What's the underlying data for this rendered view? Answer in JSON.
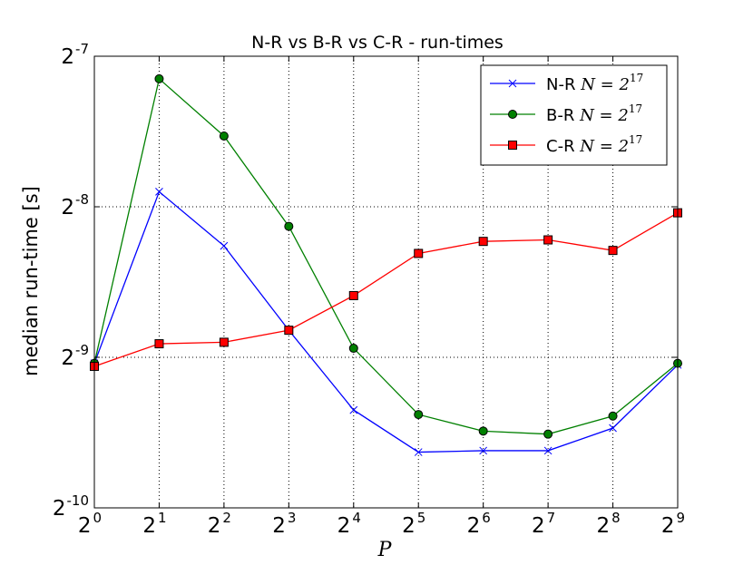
{
  "chart_data": {
    "type": "line",
    "title": "N-R vs B-R vs C-R - run-times",
    "xlabel": "P",
    "ylabel": "median run-time [s]",
    "x_scale": "log2",
    "y_scale": "log2",
    "x_exponents": [
      0,
      1,
      2,
      3,
      4,
      5,
      6,
      7,
      8,
      9
    ],
    "x_tick_base": "2",
    "x_tick_exponents": [
      "0",
      "1",
      "2",
      "3",
      "4",
      "5",
      "6",
      "7",
      "8",
      "9"
    ],
    "y_exponent_range": [
      -10,
      -7
    ],
    "y_tick_base": "2",
    "y_tick_exponents": [
      "-10",
      "-9",
      "-8",
      "-7"
    ],
    "grid": true,
    "legend_position": "top-right",
    "series": [
      {
        "name": "N-R",
        "name_suffix": "N = 2^17",
        "marker": "x",
        "color": "#0000ff",
        "y_log2": [
          -9.04,
          -7.9,
          -8.26,
          -8.82,
          -9.35,
          -9.63,
          -9.62,
          -9.62,
          -9.47,
          -9.05
        ]
      },
      {
        "name": "B-R",
        "name_suffix": "N = 2^17",
        "marker": "circle",
        "color": "#008000",
        "y_log2": [
          -9.04,
          -7.15,
          -7.53,
          -8.13,
          -8.94,
          -9.38,
          -9.49,
          -9.51,
          -9.39,
          -9.04
        ]
      },
      {
        "name": "C-R",
        "name_suffix": "N = 2^17",
        "marker": "square",
        "color": "#ff0000",
        "y_log2": [
          -9.06,
          -8.91,
          -8.9,
          -8.82,
          -8.59,
          -8.31,
          -8.23,
          -8.22,
          -8.29,
          -8.04
        ]
      }
    ]
  }
}
